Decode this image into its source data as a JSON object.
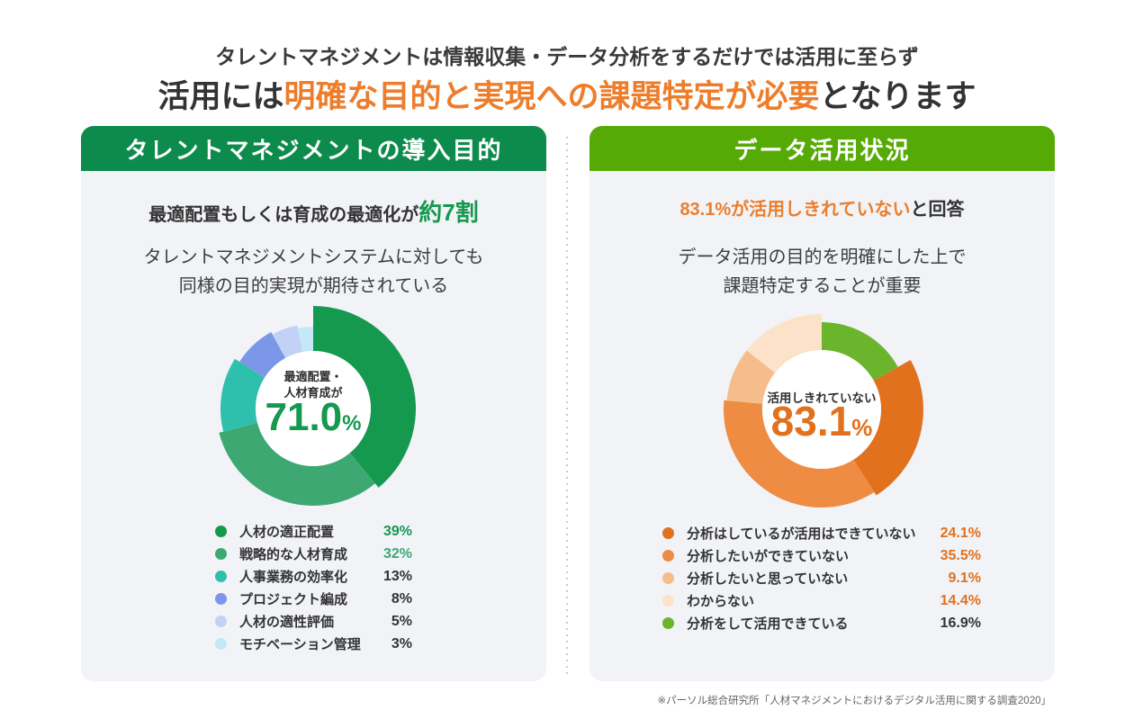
{
  "title": {
    "line1": "タレントマネジメントは情報収集・データ分析をするだけでは活用に至らず",
    "line2_pre": "活用には",
    "line2_highlight": "明確な目的と実現への課題特定が必要",
    "line2_post": "となります",
    "highlight_color": "#ed7d2b"
  },
  "left_panel": {
    "header": "タレントマネジメントの導入目的",
    "header_color": "#0d8b4d",
    "headline_pre": "最適配置もしくは育成の最適化が",
    "headline_highlight": "約7割",
    "desc_line1": "タレントマネジメントシステムに対しても",
    "desc_line2": "同様の目的実現が期待されている"
  },
  "right_panel": {
    "header": "データ活用状況",
    "header_color": "#56aa06",
    "headline_highlight": "83.1%が活用しきれていない",
    "headline_post": "と回答",
    "desc_line1": "データ活用の目的を明確にした上で",
    "desc_line2": "課題特定することが重要"
  },
  "footer": "※パーソル総合研究所「人材マネジメントにおけるデジタル活用に関する調査2020」",
  "chart_data": [
    {
      "type": "pie",
      "subtype": "donut",
      "title": "タレントマネジメントの導入目的",
      "labels": [
        "人材の適正配置",
        "戦略的な人材育成",
        "人事業務の効率化",
        "プロジェクト編成",
        "人材の適性評価",
        "モチベーション管理"
      ],
      "values": [
        39,
        32,
        13,
        8,
        5,
        3
      ],
      "unit": "%",
      "colors": [
        "#14994f",
        "#3ea873",
        "#2ec0ac",
        "#7d97e8",
        "#c2d2f6",
        "#c6e7f6"
      ],
      "value_colors": [
        "#14994f",
        "#3ea873",
        "#333333",
        "#333333",
        "#333333",
        "#333333"
      ],
      "center_label_lines": [
        "最適配置・",
        "人材育成が"
      ],
      "center_value": "71.0",
      "center_unit": "%",
      "rotation_deg": 0,
      "outer_radii": [
        114,
        108,
        103,
        97,
        94,
        91
      ],
      "inner_radius": 64,
      "legend_position": "bottom"
    },
    {
      "type": "pie",
      "subtype": "donut",
      "title": "データ活用状況",
      "labels": [
        "分析はしているが活用はできていない",
        "分析したいができていない",
        "分析したいと思っていない",
        "わからない",
        "分析をして活用できている"
      ],
      "values": [
        24.1,
        35.5,
        9.1,
        14.4,
        16.9
      ],
      "unit": "%",
      "colors": [
        "#e2711d",
        "#ee8c44",
        "#f5bd8b",
        "#fbe2c8",
        "#6ab52c"
      ],
      "value_colors": [
        "#e2711d",
        "#e2711d",
        "#e2711d",
        "#e2711d",
        "#333333"
      ],
      "center_label_lines": [
        "活用しきれていない"
      ],
      "center_value": "83.1",
      "center_unit": "%",
      "rotation_deg": 60.84,
      "outer_radii": [
        113,
        109,
        106,
        106,
        97
      ],
      "inner_radius": 66,
      "legend_position": "bottom"
    }
  ]
}
